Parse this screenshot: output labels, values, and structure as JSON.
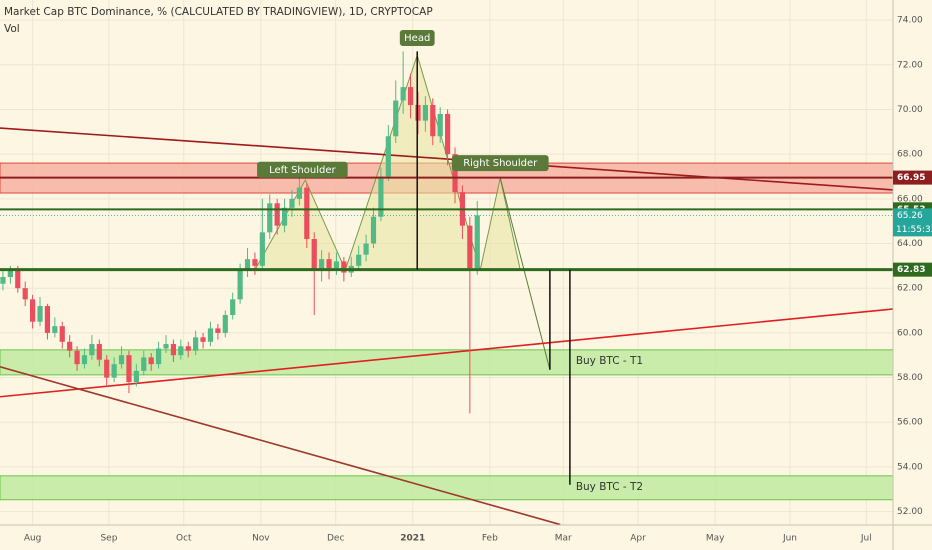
{
  "chart_data": {
    "type": "candlestick",
    "title": "Market Cap BTC Dominance, % (CALCULATED BY TRADINGVIEW), 1D, CRYPTOCAP",
    "subtitle": "Vol",
    "x": [
      0,
      1,
      2,
      3,
      4,
      5,
      6,
      7,
      8,
      9,
      10,
      11,
      12,
      13,
      14,
      15,
      16,
      17,
      18,
      19,
      20,
      21,
      22,
      23,
      24,
      25,
      26,
      27,
      28,
      29,
      30,
      31,
      32,
      33,
      34,
      35,
      36,
      37,
      38,
      39,
      40,
      41,
      42,
      43,
      44,
      45,
      46,
      47,
      48,
      49,
      50,
      51,
      52,
      53,
      54,
      55,
      56,
      57,
      58,
      59,
      60,
      61,
      62,
      63,
      64
    ],
    "open": [
      62.2,
      62.5,
      62.8,
      62.0,
      61.5,
      60.5,
      61.2,
      60.0,
      60.3,
      59.6,
      59.2,
      58.6,
      59.0,
      59.5,
      58.8,
      58.0,
      58.6,
      59.0,
      57.8,
      58.3,
      58.9,
      58.6,
      59.3,
      59.5,
      59.0,
      59.4,
      59.2,
      59.8,
      59.6,
      60.2,
      60.0,
      60.8,
      61.5,
      62.8,
      63.3,
      63.0,
      64.5,
      65.8,
      64.8,
      65.6,
      66.0,
      66.5,
      64.2,
      62.8,
      63.3,
      62.9,
      63.2,
      62.7,
      63.0,
      63.5,
      64.0,
      65.2,
      67.0,
      68.8,
      70.4,
      71.0,
      70.2,
      69.5,
      70.2,
      68.8,
      69.8,
      68.0,
      66.3,
      64.8,
      62.9
    ],
    "high": [
      62.9,
      63.0,
      63.0,
      62.3,
      61.7,
      61.6,
      61.3,
      60.7,
      60.5,
      59.9,
      59.4,
      59.3,
      59.9,
      59.7,
      59.0,
      58.9,
      59.4,
      59.2,
      58.6,
      59.2,
      59.1,
      59.6,
      59.9,
      59.7,
      59.7,
      59.6,
      60.1,
      60.0,
      60.5,
      60.4,
      61.0,
      61.8,
      63.1,
      63.8,
      63.6,
      66.0,
      66.2,
      66.0,
      66.0,
      66.4,
      67.2,
      66.7,
      64.5,
      63.7,
      63.6,
      63.6,
      63.4,
      63.4,
      63.9,
      64.4,
      65.6,
      67.4,
      69.3,
      71.3,
      72.6,
      71.6,
      70.8,
      70.6,
      70.5,
      70.1,
      70.0,
      68.3,
      66.6,
      65.2,
      65.9
    ],
    "low": [
      61.9,
      62.2,
      61.8,
      61.2,
      60.2,
      60.3,
      59.7,
      59.8,
      59.3,
      58.9,
      58.3,
      58.4,
      58.8,
      58.5,
      57.6,
      57.8,
      58.4,
      57.3,
      57.6,
      58.1,
      58.3,
      58.4,
      59.1,
      58.7,
      58.8,
      58.9,
      59.0,
      59.3,
      59.4,
      59.7,
      59.8,
      60.6,
      61.3,
      62.5,
      62.6,
      62.8,
      64.2,
      64.4,
      64.5,
      65.2,
      65.7,
      63.8,
      60.8,
      62.3,
      62.4,
      62.6,
      62.3,
      62.5,
      62.8,
      63.2,
      63.8,
      65.0,
      66.8,
      68.5,
      69.8,
      69.6,
      68.9,
      69.0,
      68.4,
      68.5,
      67.5,
      65.8,
      64.2,
      56.4,
      62.6
    ],
    "close": [
      62.5,
      62.8,
      62.0,
      61.5,
      60.5,
      61.2,
      60.0,
      60.3,
      59.6,
      59.2,
      58.6,
      59.0,
      59.5,
      58.8,
      58.0,
      58.6,
      59.0,
      57.8,
      58.3,
      58.9,
      58.6,
      59.3,
      59.5,
      59.0,
      59.4,
      59.2,
      59.8,
      59.6,
      60.2,
      60.0,
      60.8,
      61.5,
      62.8,
      63.3,
      63.0,
      64.5,
      65.8,
      64.8,
      65.6,
      66.0,
      66.5,
      64.2,
      62.8,
      63.3,
      62.9,
      63.2,
      62.7,
      63.0,
      63.5,
      64.0,
      65.2,
      67.0,
      68.8,
      70.4,
      71.0,
      70.2,
      69.5,
      70.2,
      68.8,
      69.8,
      68.0,
      66.3,
      64.8,
      62.9,
      65.26
    ],
    "up_color": "#53b987",
    "down_color": "#eb4d5c",
    "xlim": [
      -0.4,
      120.1
    ],
    "xticks": [
      {
        "value": 4.0,
        "label": "Aug"
      },
      {
        "value": 14.3,
        "label": "Sep"
      },
      {
        "value": 24.4,
        "label": "Oct"
      },
      {
        "value": 34.8,
        "label": "Nov"
      },
      {
        "value": 44.9,
        "label": "Dec"
      },
      {
        "value": 55.3,
        "label": "2021"
      },
      {
        "value": 65.7,
        "label": "Feb"
      },
      {
        "value": 75.6,
        "label": "Mar"
      },
      {
        "value": 85.7,
        "label": "Apr"
      },
      {
        "value": 96.1,
        "label": "May"
      },
      {
        "value": 106.2,
        "label": "Jun"
      },
      {
        "value": 116.5,
        "label": "Jul"
      }
    ],
    "ylim": [
      51.4,
      74.9
    ],
    "yticks": [
      {
        "value": 52,
        "label": "52.00"
      },
      {
        "value": 54,
        "label": "54.00"
      },
      {
        "value": 56,
        "label": "56.00"
      },
      {
        "value": 58,
        "label": "58.00"
      },
      {
        "value": 60,
        "label": "60.00"
      },
      {
        "value": 62,
        "label": "62.00"
      },
      {
        "value": 64,
        "label": "64.00"
      },
      {
        "value": 66,
        "label": "66.00"
      },
      {
        "value": 68,
        "label": "68.00"
      },
      {
        "value": 70,
        "label": "70.00"
      },
      {
        "value": 72,
        "label": "72.00"
      },
      {
        "value": 74,
        "label": "74.00"
      }
    ],
    "grid": true,
    "zones": [
      {
        "from": 66.26,
        "to": 67.6,
        "color": "#f6b2a2",
        "edge": "#e0473a"
      },
      {
        "from": 58.12,
        "to": 59.24,
        "color": "#bfeaa0",
        "edge": "#6cc34a"
      },
      {
        "from": 52.53,
        "to": 53.6,
        "color": "#bfeaa0",
        "edge": "#6cc34a"
      }
    ],
    "levels": [
      {
        "value": 66.95,
        "color": "#8e1f1f"
      },
      {
        "value": 65.53,
        "color": "#2e6b1e"
      },
      {
        "value": 62.83,
        "color": "#2e6b1e"
      }
    ],
    "last_price": {
      "value": 65.26,
      "color": "#26a69a",
      "countdown": "11:55:33"
    },
    "trendlines": [
      {
        "points": [
          [
            -0.4,
            69.17
          ],
          [
            120.1,
            66.4
          ]
        ],
        "color": "#a01a1a"
      },
      {
        "points": [
          [
            -0.4,
            57.14
          ],
          [
            120.1,
            61.07
          ]
        ],
        "color": "#e02020"
      },
      {
        "points": [
          [
            -0.4,
            58.48
          ],
          [
            75.2,
            51.42
          ]
        ],
        "color": "#a0392b"
      }
    ],
    "pattern": [
      [
        [
          34.0,
          62.82
        ],
        [
          40.8,
          66.84
        ],
        [
          46.2,
          62.82
        ]
      ],
      [
        [
          46.2,
          62.82
        ],
        [
          55.9,
          72.43
        ],
        [
          64.4,
          62.82
        ]
      ],
      [
        [
          64.4,
          62.82
        ],
        [
          67.1,
          66.93
        ],
        [
          69.8,
          62.82
        ]
      ]
    ],
    "projection": [
      [
        67.1,
        66.93
      ],
      [
        73.8,
        58.35
      ]
    ],
    "verticals": [
      {
        "x": 55.9,
        "from": 62.83,
        "to": 72.6
      },
      {
        "x": 73.8,
        "from": 62.83,
        "to": 58.35
      },
      {
        "x": 76.5,
        "from": 62.83,
        "to": 53.2
      }
    ],
    "annotations": [
      {
        "text": "Head",
        "x": 55.9,
        "y": 73.2,
        "boxed": true
      },
      {
        "text": "Left Shoulder",
        "x": 40.4,
        "y": 67.3,
        "boxed": true
      },
      {
        "text": "Right Shoulder",
        "x": 67.1,
        "y": 67.6,
        "boxed": true
      },
      {
        "text": "Buy BTC - T1",
        "x": 77.3,
        "y": 58.75,
        "boxed": false
      },
      {
        "text": "Buy BTC - T2",
        "x": 77.3,
        "y": 53.1,
        "boxed": false
      }
    ]
  }
}
